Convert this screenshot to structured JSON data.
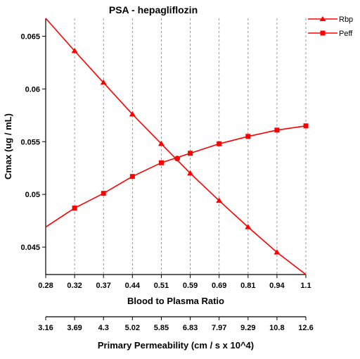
{
  "chart_data": {
    "type": "line",
    "title": "PSA - hepagliflozin",
    "ylabel": "Cmax (ug / mL)",
    "xlabel": "Blood to Plasma Ratio",
    "xlabel2": "Primary Permeability (cm / s x 10^4)",
    "x_ticks": [
      "0.28",
      "0.32",
      "0.37",
      "0.44",
      "0.51",
      "0.59",
      "0.69",
      "0.81",
      "0.94",
      "1.1"
    ],
    "x2_ticks": [
      "3.16",
      "3.69",
      "4.3",
      "5.02",
      "5.85",
      "6.83",
      "7.97",
      "9.29",
      "10.8",
      "12.6"
    ],
    "y_ticks": [
      "0.065",
      "0.06",
      "0.055",
      "0.05",
      "0.045"
    ],
    "y_tick_values": [
      0.065,
      0.06,
      0.055,
      0.05,
      0.045
    ],
    "ylim": [
      0.0424,
      0.0667
    ],
    "grid": "vertical dashed",
    "legend_position": "top-right",
    "series": [
      {
        "name": "Rbp",
        "marker": "triangle",
        "color": "#ff0000",
        "values": [
          0.0667,
          0.0636,
          0.0606,
          0.0576,
          0.0548,
          0.052,
          0.0494,
          0.0469,
          0.0445,
          0.0424
        ],
        "marker_indices": [
          1,
          2,
          3,
          4,
          5,
          6,
          7,
          8
        ]
      },
      {
        "name": "Peff",
        "marker": "square",
        "color": "#ff0000",
        "values": [
          0.0469,
          0.0487,
          0.0501,
          0.0517,
          0.053,
          0.0539,
          0.0548,
          0.0555,
          0.0561,
          0.0565
        ],
        "marker_indices": [
          1,
          2,
          3,
          4,
          5,
          6,
          7,
          8,
          9
        ]
      }
    ],
    "intersection": {
      "x_index": 4.55,
      "y": 0.0534
    }
  }
}
